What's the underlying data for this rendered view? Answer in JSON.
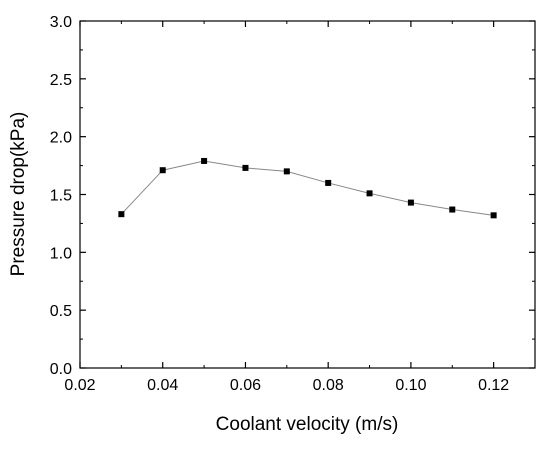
{
  "chart_data": {
    "type": "line",
    "title": "",
    "xlabel": "Coolant velocity (m/s)",
    "ylabel": "Pressure drop(kPa)",
    "xlim": [
      0.02,
      0.13
    ],
    "ylim": [
      0.0,
      3.0
    ],
    "x_ticks": [
      "0.02",
      "0.04",
      "0.06",
      "0.08",
      "0.10",
      "0.12"
    ],
    "y_ticks": [
      "0.0",
      "0.5",
      "1.0",
      "1.5",
      "2.0",
      "2.5",
      "3.0"
    ],
    "grid": false,
    "legend": "none",
    "series": [
      {
        "x": [
          0.03,
          0.04,
          0.05,
          0.06,
          0.07,
          0.08,
          0.09,
          0.1,
          0.11,
          0.12
        ],
        "y": [
          1.33,
          1.71,
          1.79,
          1.73,
          1.7,
          1.6,
          1.51,
          1.43,
          1.37,
          1.32
        ],
        "marker": "square",
        "line_color": "#888888",
        "marker_color": "#000000"
      }
    ]
  }
}
